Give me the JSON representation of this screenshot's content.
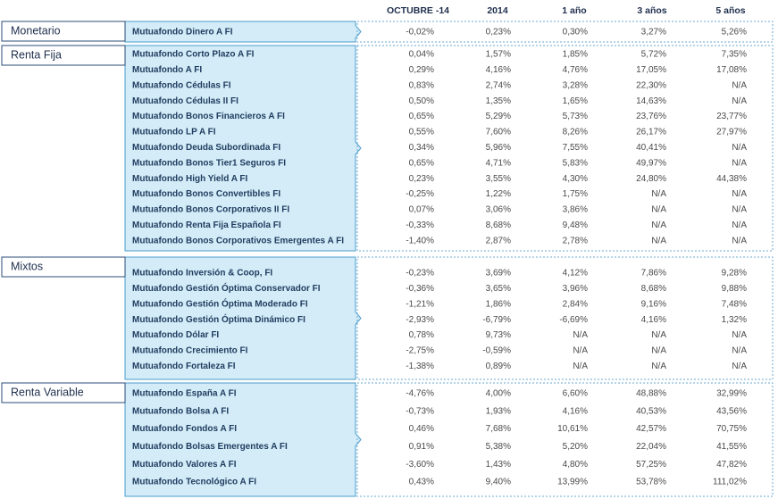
{
  "table": {
    "columns": [
      "OCTUBRE -14",
      "2014",
      "1 año",
      "3 años",
      "5 años"
    ],
    "groups": [
      {
        "name": "Monetario",
        "funds": [
          {
            "name": "Mutuafondo Dinero A FI",
            "values": [
              "-0,02%",
              "0,23%",
              "0,30%",
              "3,27%",
              "5,26%"
            ]
          }
        ]
      },
      {
        "name": "Renta Fija",
        "funds": [
          {
            "name": "Mutuafondo Corto Plazo A FI",
            "values": [
              "0,04%",
              "1,57%",
              "1,85%",
              "5,72%",
              "7,35%"
            ]
          },
          {
            "name": "Mutuafondo A FI",
            "values": [
              "0,29%",
              "4,16%",
              "4,76%",
              "17,05%",
              "17,08%"
            ]
          },
          {
            "name": "Mutuafondo Cédulas FI",
            "values": [
              "0,83%",
              "2,74%",
              "3,28%",
              "22,30%",
              "N/A"
            ]
          },
          {
            "name": "Mutuafondo Cédulas II FI",
            "values": [
              "0,50%",
              "1,35%",
              "1,65%",
              "14,63%",
              "N/A"
            ]
          },
          {
            "name": "Mutuafondo Bonos Financieros A FI",
            "values": [
              "0,65%",
              "5,29%",
              "5,73%",
              "23,76%",
              "23,77%"
            ]
          },
          {
            "name": "Mutuafondo LP A FI",
            "values": [
              "0,55%",
              "7,60%",
              "8,26%",
              "26,17%",
              "27,97%"
            ]
          },
          {
            "name": "Mutuafondo Deuda Subordinada FI",
            "values": [
              "0,34%",
              "5,96%",
              "7,55%",
              "40,41%",
              "N/A"
            ]
          },
          {
            "name": "Mutuafondo Bonos Tier1 Seguros FI",
            "values": [
              "0,65%",
              "4,71%",
              "5,83%",
              "49,97%",
              "N/A"
            ]
          },
          {
            "name": "Mutuafondo High Yield A FI",
            "values": [
              "0,23%",
              "3,55%",
              "4,30%",
              "24,80%",
              "44,38%"
            ]
          },
          {
            "name": "Mutuafondo Bonos Convertibles FI",
            "values": [
              "-0,25%",
              "1,22%",
              "1,75%",
              "N/A",
              "N/A"
            ]
          },
          {
            "name": "Mutuafondo Bonos Corporativos II FI",
            "values": [
              "0,07%",
              "3,06%",
              "3,86%",
              "N/A",
              "N/A"
            ]
          },
          {
            "name": "Mutuafondo Renta Fija Española FI",
            "values": [
              "-0,33%",
              "8,68%",
              "9,48%",
              "N/A",
              "N/A"
            ]
          },
          {
            "name": "Mutuafondo Bonos Corporativos Emergentes A FI",
            "values": [
              "-1,40%",
              "2,87%",
              "2,78%",
              "N/A",
              "N/A"
            ]
          }
        ]
      },
      {
        "name": "Mixtos",
        "funds": [
          {
            "name": "Mutuafondo Inversión & Coop, FI",
            "values": [
              "-0,23%",
              "3,69%",
              "4,12%",
              "7,86%",
              "9,28%"
            ]
          },
          {
            "name": "Mutuafondo Gestión Óptima Conservador FI",
            "values": [
              "-0,36%",
              "3,65%",
              "3,96%",
              "8,68%",
              "9,88%"
            ]
          },
          {
            "name": "Mutuafondo Gestión Óptima Moderado FI",
            "values": [
              "-1,21%",
              "1,86%",
              "2,84%",
              "9,16%",
              "7,48%"
            ]
          },
          {
            "name": "Mutuafondo Gestión Óptima Dinámico FI",
            "values": [
              "-2,93%",
              "-6,79%",
              "-6,69%",
              "4,16%",
              "1,32%"
            ]
          },
          {
            "name": "Mutuafondo Dólar FI",
            "values": [
              "0,78%",
              "9,73%",
              "N/A",
              "N/A",
              "N/A"
            ]
          },
          {
            "name": "Mutuafondo Crecimiento FI",
            "values": [
              "-2,75%",
              "-0,59%",
              "N/A",
              "N/A",
              "N/A"
            ]
          },
          {
            "name": "Mutuafondo Fortaleza FI",
            "values": [
              "-1,38%",
              "0,89%",
              "N/A",
              "N/A",
              "N/A"
            ]
          }
        ]
      },
      {
        "name": "Renta Variable",
        "funds": [
          {
            "name": "Mutuafondo España A FI",
            "values": [
              "-4,76%",
              "4,00%",
              "6,60%",
              "48,88%",
              "32,99%"
            ]
          },
          {
            "name": "Mutuafondo Bolsa A FI",
            "values": [
              "-0,73%",
              "1,93%",
              "4,16%",
              "40,53%",
              "43,56%"
            ]
          },
          {
            "name": "Mutuafondo Fondos A FI",
            "values": [
              "0,46%",
              "7,68%",
              "10,61%",
              "42,57%",
              "70,75%"
            ]
          },
          {
            "name": "Mutuafondo Bolsas Emergentes A FI",
            "values": [
              "0,91%",
              "5,38%",
              "5,20%",
              "22,04%",
              "41,55%"
            ]
          },
          {
            "name": "Mutuafondo Valores A FI",
            "values": [
              "-3,60%",
              "1,43%",
              "4,80%",
              "57,25%",
              "47,82%"
            ]
          },
          {
            "name": "Mutuafondo Tecnológico A FI",
            "values": [
              "0,43%",
              "9,40%",
              "13,99%",
              "53,78%",
              "111,02%"
            ]
          }
        ]
      }
    ]
  }
}
